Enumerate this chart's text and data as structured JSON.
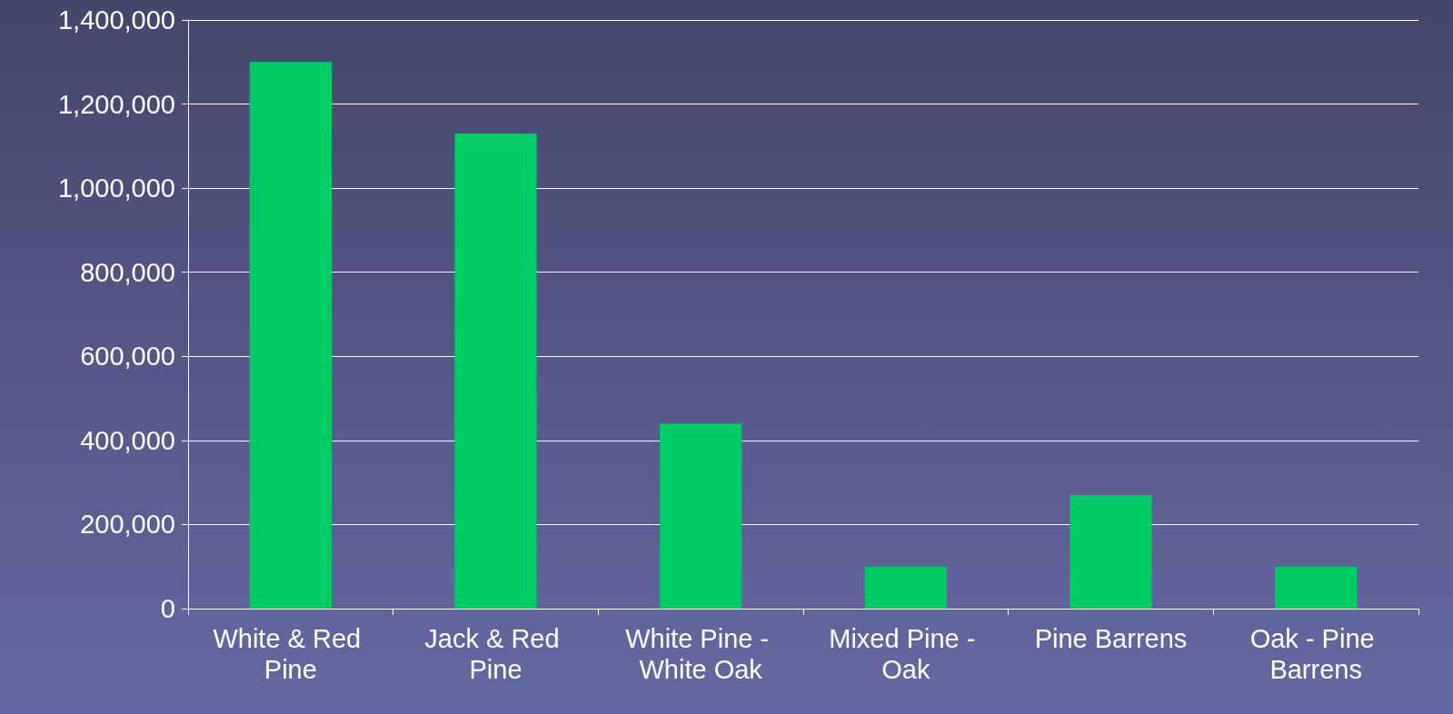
{
  "chart_data": {
    "type": "bar",
    "categories": [
      "White & Red Pine",
      "Jack & Red Pine",
      "White Pine - White Oak",
      "Mixed Pine - Oak",
      "Pine Barrens",
      "Oak - Pine Barrens"
    ],
    "values": [
      1300000,
      1130000,
      440000,
      100000,
      270000,
      100000
    ],
    "color": "#00cc66",
    "ylim": [
      0,
      1400000
    ],
    "yticks": [
      0,
      {
        "value": 200000,
        "label": "200,000"
      },
      {
        "value": 400000,
        "label": "400,000"
      },
      {
        "value": 600000,
        "label": "600,000"
      },
      {
        "value": 800000,
        "label": "800,000"
      },
      {
        "value": 1000000,
        "label": "1,000,000"
      },
      {
        "value": 1200000,
        "label": "1,200,000"
      },
      {
        "value": 1400000,
        "label": "1,400,000"
      }
    ],
    "grid": "y"
  }
}
